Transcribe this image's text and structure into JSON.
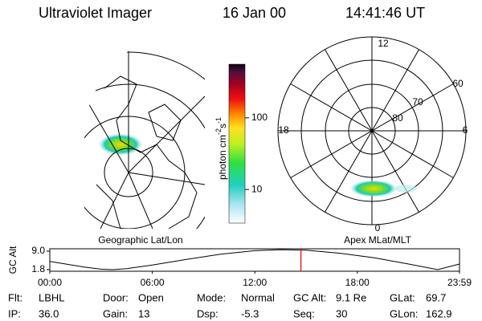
{
  "header": {
    "title": "Ultraviolet Imager",
    "date": "16 Jan 00",
    "time": "14:41:46 UT"
  },
  "left_panel": {
    "label": "Geographic Lat/Lon"
  },
  "colorbar": {
    "label": [
      "photon cm",
      "-2",
      "s",
      "-1"
    ],
    "log_scale": true,
    "ylim": [
      3.4,
      560
    ],
    "yticks": [
      10,
      100
    ]
  },
  "right_panel": {
    "label": "Apex MLat/MLT",
    "mlt_labels": [
      "12",
      "18",
      "6",
      "0"
    ],
    "mlat_labels": [
      "60",
      "70",
      "80"
    ]
  },
  "timeline": {
    "ylabel": "GC Alt",
    "ylim": [
      1.17,
      9.94
    ],
    "yticks": [
      {
        "value": 9.0,
        "label": "9.0"
      },
      {
        "value": 1.8,
        "label": "1.8"
      }
    ],
    "xlim": [
      0,
      23.98
    ],
    "xticks": [
      {
        "value": 0,
        "label": "00:00"
      },
      {
        "value": 6,
        "label": "06:00"
      },
      {
        "value": 12,
        "label": "12:00"
      },
      {
        "value": 18,
        "label": "18:00"
      },
      {
        "value": 23.98,
        "label": "23:59"
      }
    ],
    "x": [
      0,
      1,
      2,
      3,
      3.7,
      4.5,
      6,
      8,
      10,
      12,
      13.5,
      15,
      17,
      19,
      21,
      22.7,
      23.98
    ],
    "values": [
      5.0,
      3.9,
      2.8,
      2.0,
      1.8,
      2.2,
      3.6,
      5.8,
      7.8,
      9.2,
      9.6,
      9.4,
      8.2,
      6.4,
      4.0,
      1.8,
      4.0
    ],
    "marker": 14.7,
    "marker_color": "#e00000"
  },
  "footer": {
    "rows": [
      [
        {
          "label": "Flt:",
          "value": "LBHL"
        },
        {
          "label": "Door:",
          "value": "Open"
        },
        {
          "label": "Mode:",
          "value": "Normal"
        },
        {
          "label": "GC Alt:",
          "value": "9.1 Re"
        },
        {
          "label": "GLat:",
          "value": "69.7"
        }
      ],
      [
        {
          "label": "IP:",
          "value": "36.0"
        },
        {
          "label": "Gain:",
          "value": "13"
        },
        {
          "label": "Dsp:",
          "value": "-5.3"
        },
        {
          "label": "Seq:",
          "value": "30"
        },
        {
          "label": "GLon:",
          "value": "162.9"
        }
      ]
    ]
  }
}
